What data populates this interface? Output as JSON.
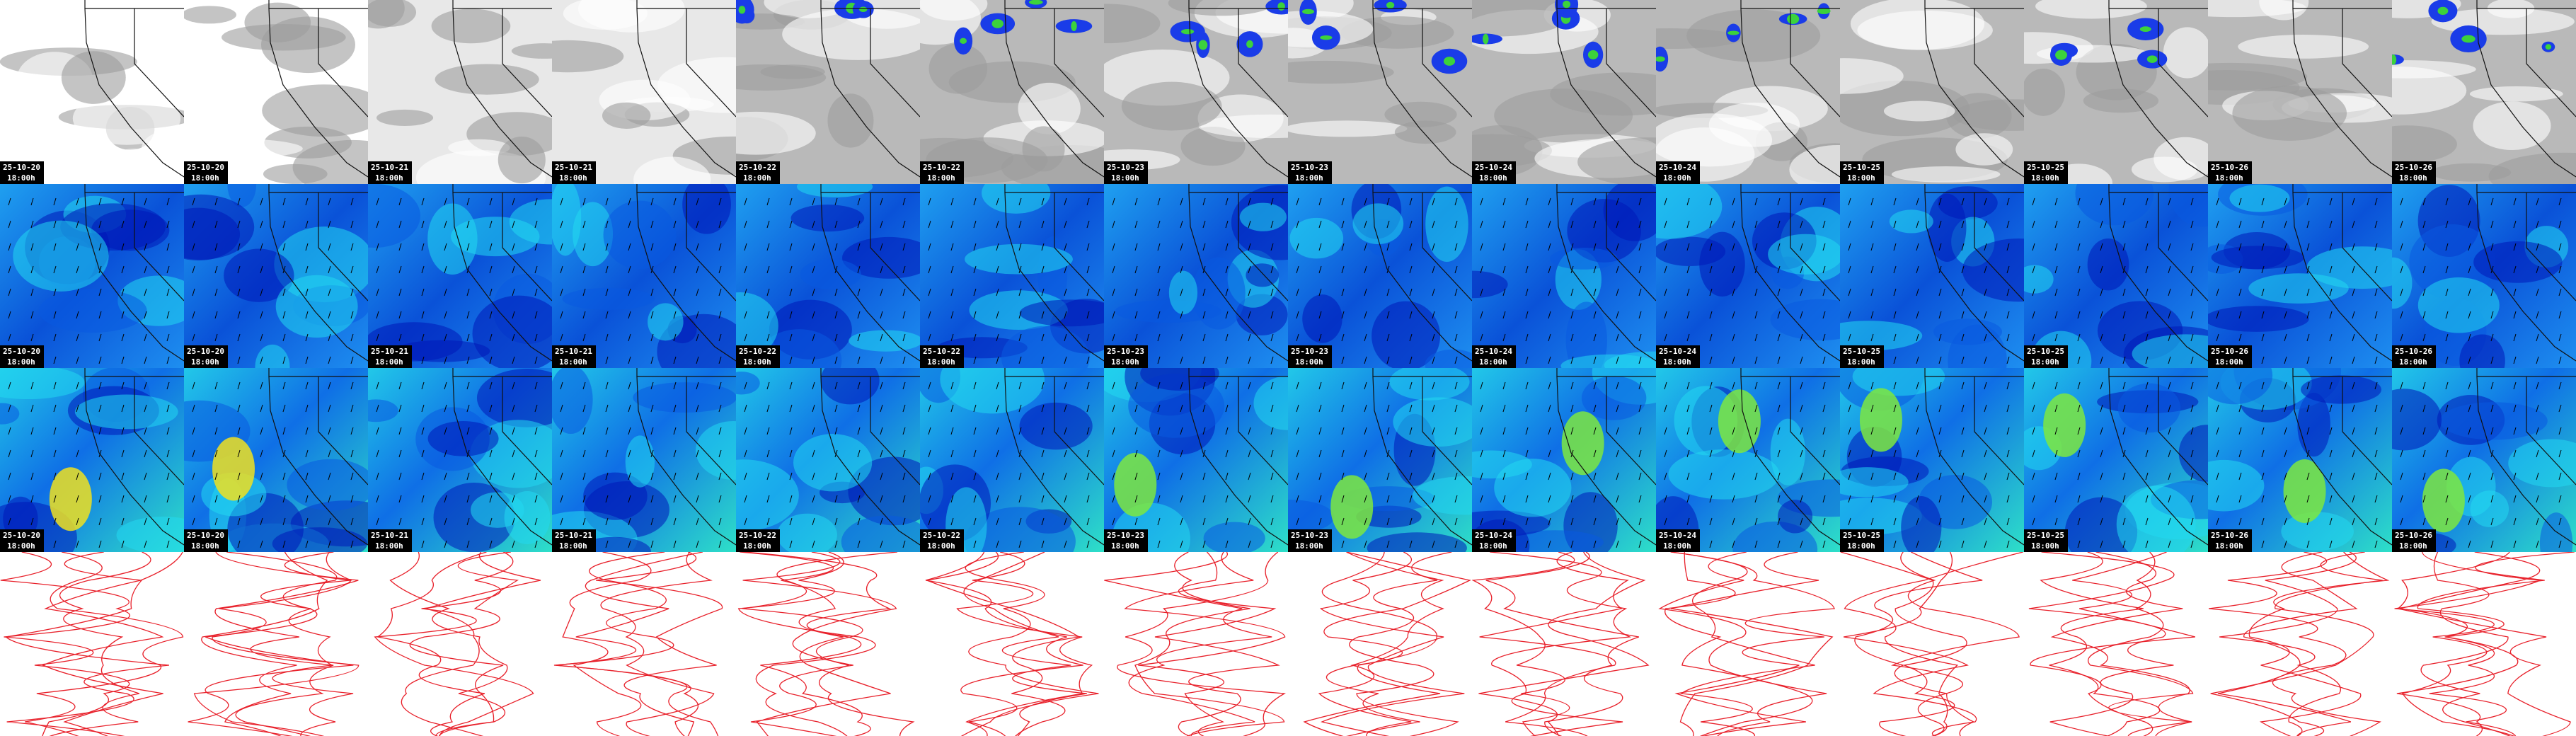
{
  "panels": [
    {
      "date": "25-10-20",
      "time": "18:00h"
    },
    {
      "date": "25-10-20",
      "time": "18:00h"
    },
    {
      "date": "25-10-21",
      "time": "18:00h"
    },
    {
      "date": "25-10-21",
      "time": "18:00h"
    },
    {
      "date": "25-10-22",
      "time": "18:00h"
    },
    {
      "date": "25-10-22",
      "time": "18:00h"
    },
    {
      "date": "25-10-23",
      "time": "18:00h"
    },
    {
      "date": "25-10-23",
      "time": "18:00h"
    },
    {
      "date": "25-10-24",
      "time": "18:00h"
    },
    {
      "date": "25-10-24",
      "time": "18:00h"
    },
    {
      "date": "25-10-25",
      "time": "18:00h"
    },
    {
      "date": "25-10-25",
      "time": "18:00h"
    },
    {
      "date": "25-10-26",
      "time": "18:00h"
    },
    {
      "date": "25-10-26",
      "time": "18:00h"
    }
  ]
}
